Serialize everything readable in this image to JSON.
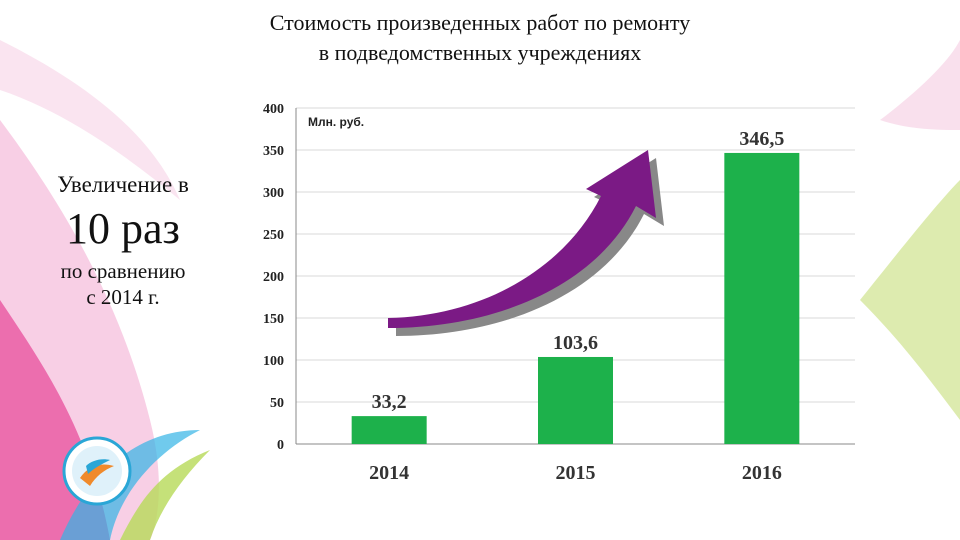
{
  "title": {
    "line1": "Стоимость произведенных работ по ремонту",
    "line2": "в подведомственных учреждениях"
  },
  "callout": {
    "line1": "Увеличение в",
    "big": "10 раз",
    "line3": "по сравнению",
    "line4": "с 2014 г."
  },
  "colors": {
    "bar": "#1db14b",
    "arrow": "#7b1a85",
    "arrow_shadow": "#888888"
  },
  "icons": [
    "logo-emblem-icon",
    "growth-arrow-icon"
  ],
  "chart_data": {
    "type": "bar",
    "ylabel": "Млн. руб.",
    "categories": [
      "2014",
      "2015",
      "2016"
    ],
    "values": [
      33.2,
      103.6,
      346.5
    ],
    "value_labels": [
      "33,2",
      "103,6",
      "346,5"
    ],
    "yticks": [
      "0",
      "50",
      "100",
      "150",
      "200",
      "250",
      "300",
      "350",
      "400"
    ],
    "ylim": [
      0,
      400
    ],
    "grid": true,
    "legend": "none"
  }
}
